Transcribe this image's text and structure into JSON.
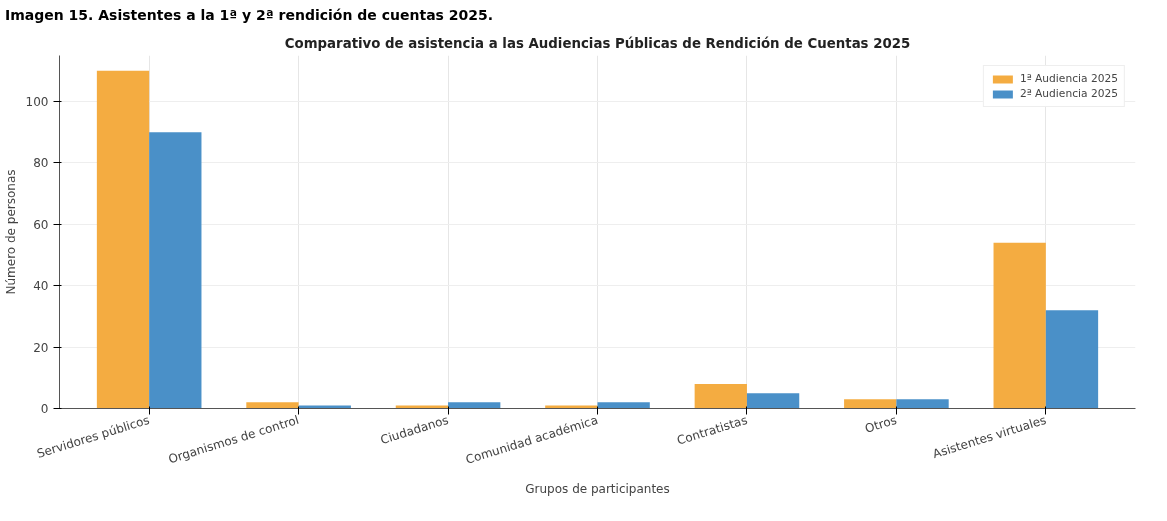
{
  "chart_data": {
    "type": "bar",
    "title": "Comparativo de asistencia a las Audiencias Públicas de Rendición de Cuentas 2025",
    "xlabel": "Grupos de participantes",
    "ylabel": "Número de personas",
    "annotations": [
      "Imagen 15. Asistentes a la 1ª y 2ª rendición de cuentas 2025."
    ],
    "categories": [
      "Servidores públicos",
      "Organismos de control",
      "Ciudadanos",
      "Comunidad académica",
      "Contratistas",
      "Otros",
      "Asistentes virtuales"
    ],
    "series": [
      {
        "name": "1ª Audiencia 2025",
        "color": "#f4ac41",
        "values": [
          110,
          2,
          1,
          1,
          8,
          3,
          54
        ]
      },
      {
        "name": "2ª Audiencia 2025",
        "color": "#4a90c8",
        "values": [
          90,
          1,
          2,
          2,
          5,
          3,
          32
        ]
      }
    ],
    "ylim": [
      0,
      115
    ],
    "yticks": [
      0,
      20,
      40,
      60,
      80,
      100
    ],
    "grid": true,
    "legend": "top right"
  }
}
